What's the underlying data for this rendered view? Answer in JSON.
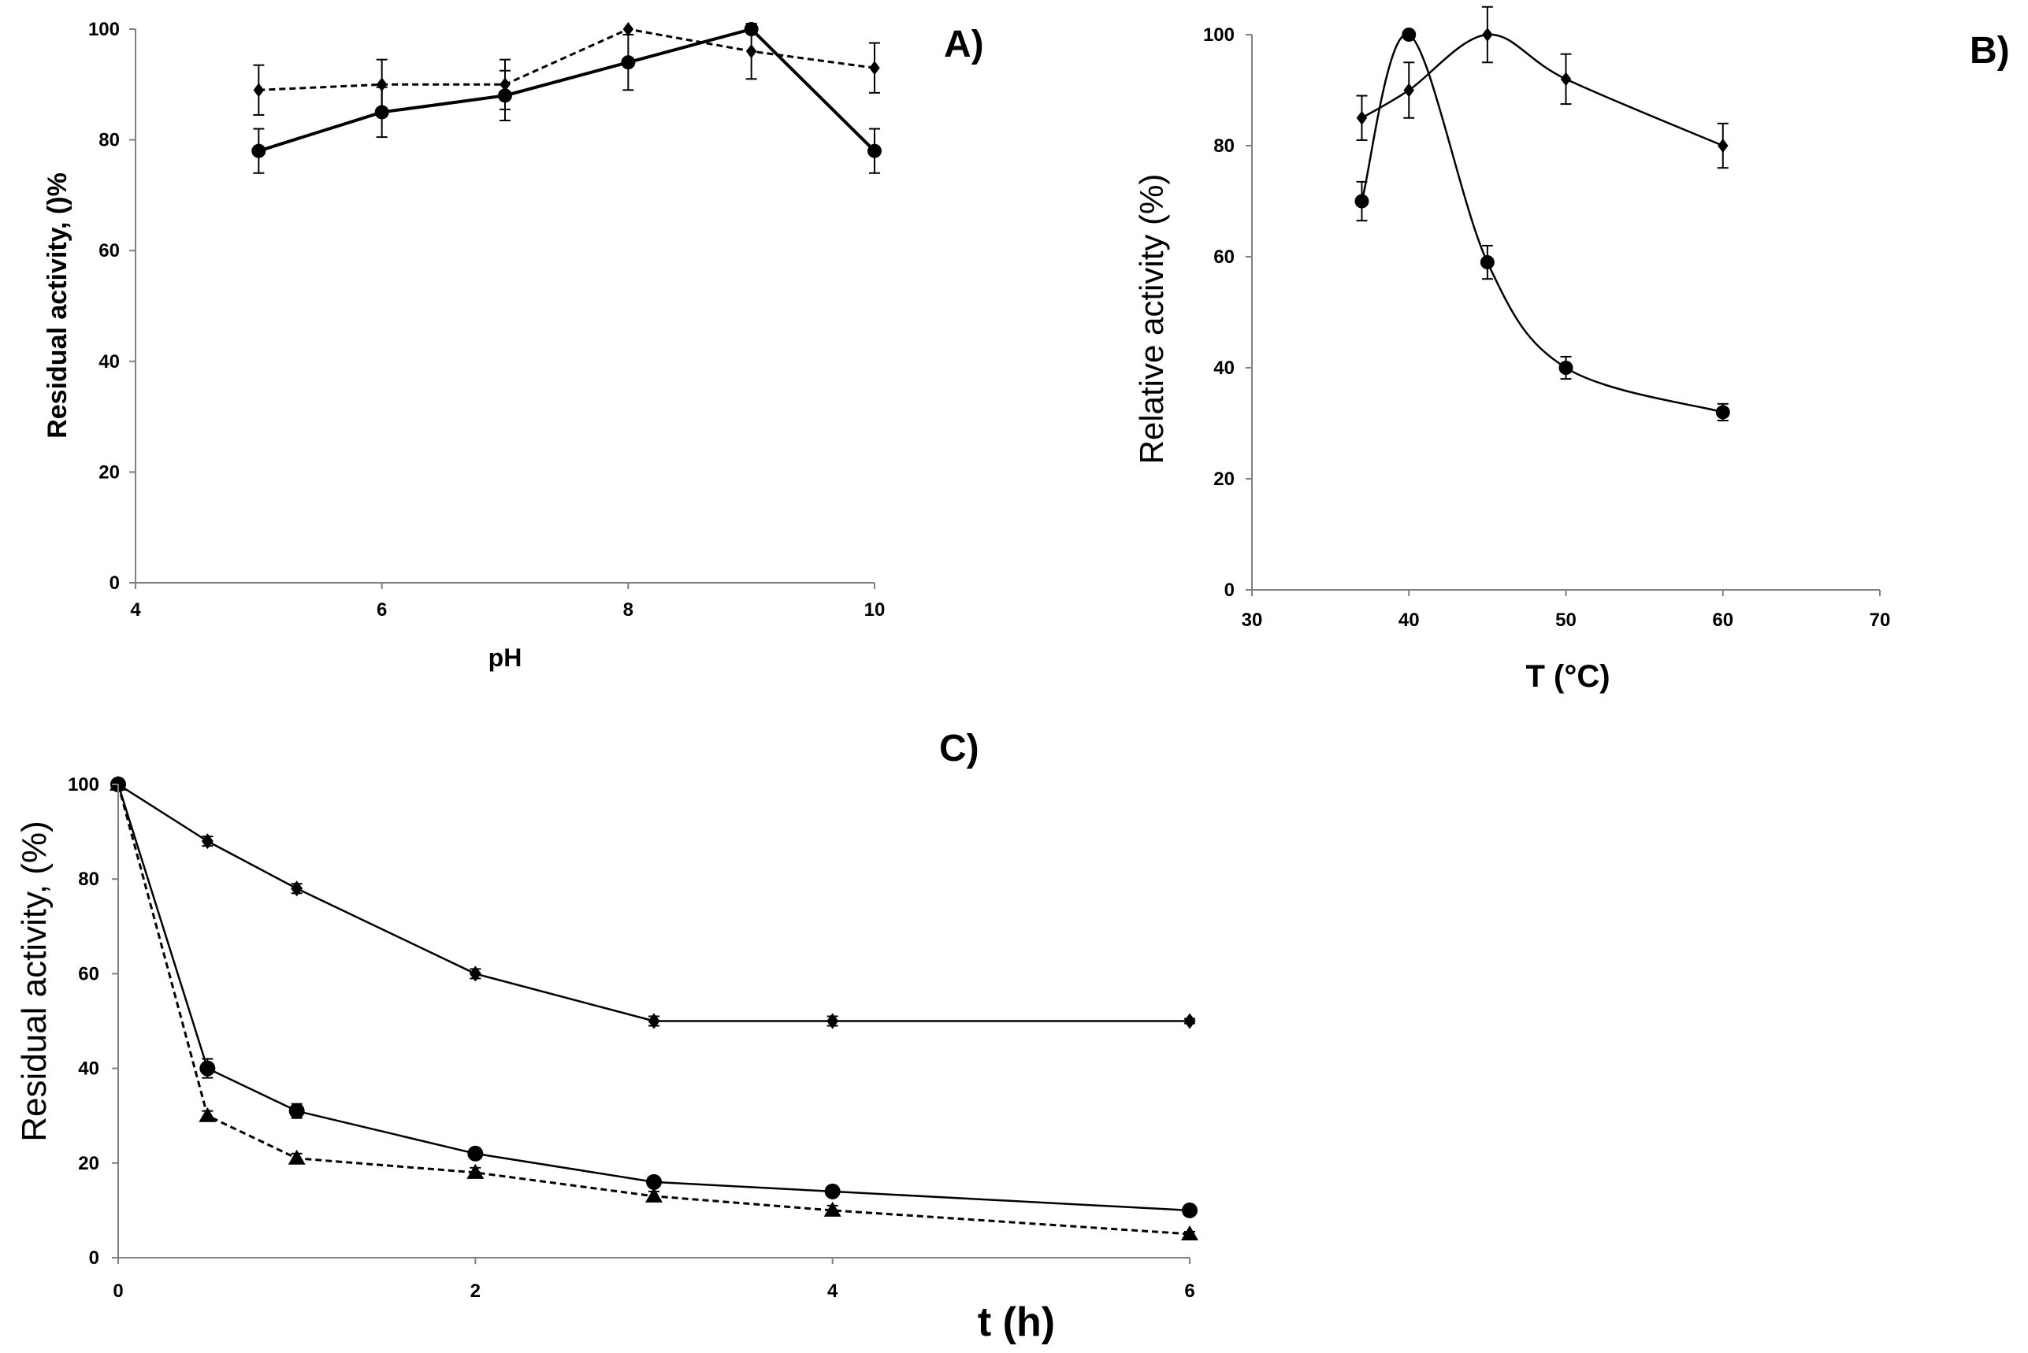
{
  "chart_data": [
    {
      "panel_label": "A)",
      "type": "line",
      "xlabel": "pH",
      "ylabel": "Residual activity, ()%",
      "xlim": [
        4,
        10
      ],
      "ylim": [
        0,
        100
      ],
      "xticks": [
        4,
        6,
        8,
        10
      ],
      "yticks": [
        0,
        20,
        40,
        60,
        80,
        100
      ],
      "series": [
        {
          "marker": "circle",
          "line": "solid",
          "x": [
            5,
            6,
            7,
            8,
            9,
            10
          ],
          "y": [
            78,
            85,
            88,
            94,
            100,
            78
          ],
          "err": [
            4,
            4.5,
            4.5,
            5,
            0,
            4
          ]
        },
        {
          "marker": "diamond",
          "line": "dashed",
          "x": [
            5,
            6,
            7,
            8,
            9,
            10
          ],
          "y": [
            89,
            90,
            90,
            100,
            96,
            93
          ],
          "err": [
            4.5,
            4.5,
            4.5,
            0,
            5,
            4.5
          ]
        }
      ]
    },
    {
      "panel_label": "B)",
      "type": "line",
      "xlabel": "T (°C)",
      "ylabel": "Relative activity  (%)",
      "xlim": [
        30,
        70
      ],
      "ylim": [
        0,
        100
      ],
      "xticks": [
        30,
        40,
        50,
        60,
        70
      ],
      "yticks": [
        0,
        20,
        40,
        60,
        80,
        100
      ],
      "series": [
        {
          "marker": "circle",
          "line": "smooth",
          "x": [
            37,
            40,
            45,
            50,
            60
          ],
          "y": [
            70,
            100,
            59,
            40,
            32
          ],
          "err": [
            3.5,
            0,
            3,
            2,
            1.5
          ]
        },
        {
          "marker": "diamond",
          "line": "smooth",
          "x": [
            37,
            40,
            45,
            50,
            60
          ],
          "y": [
            85,
            90,
            100,
            92,
            80
          ],
          "err": [
            4,
            5,
            5,
            4.5,
            4
          ]
        }
      ]
    },
    {
      "panel_label": "C)",
      "type": "line",
      "xlabel": "t (h)",
      "ylabel": "Residual  activity, (%)",
      "xlim": [
        0,
        6
      ],
      "ylim": [
        0,
        100
      ],
      "xticks": [
        0,
        2,
        4,
        6
      ],
      "yticks": [
        0,
        20,
        40,
        60,
        80,
        100
      ],
      "series": [
        {
          "marker": "diamond",
          "line": "solid",
          "x": [
            0,
            0.5,
            1,
            2,
            3,
            4,
            6
          ],
          "y": [
            100,
            88,
            78,
            60,
            50,
            50,
            50
          ],
          "err": [
            1,
            1,
            1,
            1,
            1,
            1,
            0.5
          ]
        },
        {
          "marker": "circle",
          "line": "solid",
          "x": [
            0,
            0.5,
            1,
            2,
            3,
            4,
            6
          ],
          "y": [
            100,
            40,
            31,
            22,
            16,
            14,
            10
          ],
          "err": [
            1,
            2,
            1.5,
            1,
            1,
            1,
            0.5
          ]
        },
        {
          "marker": "triangle",
          "line": "dashed",
          "x": [
            0,
            0.5,
            1,
            2,
            3,
            4,
            6
          ],
          "y": [
            100,
            30,
            21,
            18,
            13,
            10,
            5
          ],
          "err": [
            1,
            1,
            1,
            1,
            1,
            1,
            0.5
          ]
        }
      ]
    }
  ]
}
